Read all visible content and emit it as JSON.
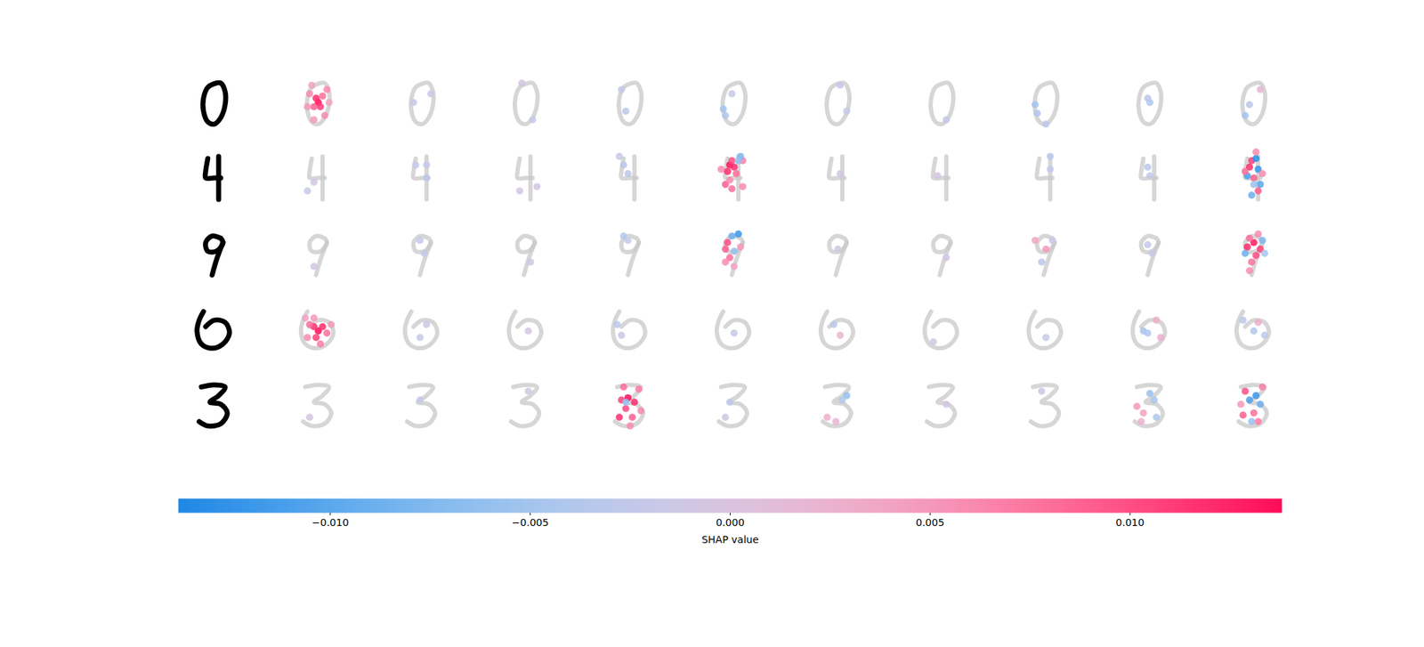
{
  "chart_data": {
    "type": "image_grid",
    "tick_labels": false,
    "xlim": [
      0,
      28
    ],
    "ylim": [
      28,
      0
    ],
    "images": [
      [
        [
          [
            15,
            5
          ],
          [
            11,
            7
          ],
          [
            9,
            12
          ],
          [
            9,
            18
          ],
          [
            11,
            23
          ],
          [
            14,
            24
          ],
          [
            17,
            21
          ],
          [
            19,
            15
          ],
          [
            19,
            9
          ],
          [
            17,
            5
          ],
          [
            15,
            5
          ]
        ]
      ],
      [
        [
          [
            11,
            5
          ],
          [
            10,
            11
          ],
          [
            10,
            14
          ],
          [
            14,
            14
          ],
          [
            17,
            14
          ]
        ],
        [
          [
            16,
            4
          ],
          [
            16,
            12
          ],
          [
            16,
            24
          ]
        ]
      ],
      [
        [
          [
            17,
            7
          ],
          [
            13,
            6
          ],
          [
            10,
            9
          ],
          [
            11,
            13
          ],
          [
            15,
            13
          ],
          [
            18,
            9
          ],
          [
            17,
            7
          ]
        ],
        [
          [
            18,
            9
          ],
          [
            15,
            17
          ],
          [
            13,
            24
          ]
        ]
      ],
      [
        [
          [
            9,
            6
          ],
          [
            7,
            10
          ],
          [
            6,
            15
          ],
          [
            8,
            21
          ],
          [
            13,
            23
          ],
          [
            18,
            21
          ],
          [
            21,
            16
          ],
          [
            19,
            11
          ],
          [
            14,
            10
          ],
          [
            10,
            13
          ]
        ]
      ],
      [
        [
          [
            8,
            6
          ],
          [
            14,
            5
          ],
          [
            19,
            6
          ],
          [
            16,
            10
          ],
          [
            12,
            13
          ],
          [
            17,
            14
          ],
          [
            20,
            18
          ],
          [
            17,
            23
          ],
          [
            11,
            24
          ],
          [
            7,
            22
          ]
        ]
      ]
    ],
    "explanations": [
      [
        [
          [
            14,
            14,
            0.0138
          ],
          [
            13,
            12,
            0.012
          ],
          [
            15,
            16,
            0.011
          ],
          [
            12,
            16,
            0.009
          ],
          [
            16,
            11,
            0.008
          ],
          [
            10,
            10,
            0.006
          ],
          [
            18,
            8,
            0.006
          ],
          [
            9,
            16,
            0.005
          ],
          [
            12,
            22,
            0.005
          ],
          [
            17,
            20,
            0.006
          ],
          [
            11,
            6,
            0.004
          ],
          [
            19,
            14,
            0.004
          ]
        ],
        [
          [
            10,
            14,
            -0.002
          ],
          [
            18,
            10,
            -0.002
          ]
        ],
        [
          [
            12,
            5,
            -0.001
          ],
          [
            17,
            22,
            -0.002
          ]
        ],
        [
          [
            10,
            8,
            -0.002
          ],
          [
            12,
            18,
            -0.003
          ]
        ],
        [
          [
            9,
            17,
            -0.005
          ],
          [
            10,
            20,
            -0.004
          ],
          [
            13,
            10,
            -0.002
          ]
        ],
        [
          [
            15,
            6,
            -0.002
          ],
          [
            18,
            18,
            -0.002
          ]
        ],
        [
          [
            16,
            22,
            -0.002
          ]
        ],
        [
          [
            9,
            15,
            -0.005
          ],
          [
            10,
            19,
            -0.004
          ],
          [
            14,
            24,
            -0.003
          ]
        ],
        [
          [
            14,
            14,
            -0.004
          ],
          [
            13,
            12,
            -0.003
          ]
        ],
        [
          [
            10,
            20,
            -0.005
          ],
          [
            12,
            15,
            -0.003
          ],
          [
            17,
            8,
            0.002
          ]
        ]
      ],
      [
        [
          [
            9,
            20,
            -0.002
          ],
          [
            12,
            16,
            -0.001
          ]
        ],
        [
          [
            16,
            14,
            -0.003
          ],
          [
            16,
            8,
            -0.002
          ],
          [
            11,
            8,
            -0.002
          ]
        ],
        [
          [
            11,
            20,
            -0.001
          ],
          [
            19,
            18,
            -0.001
          ]
        ],
        [
          [
            11,
            8,
            -0.003
          ],
          [
            13,
            12,
            -0.003
          ],
          [
            9,
            4,
            -0.002
          ]
        ],
        [
          [
            12,
            8,
            0.0138
          ],
          [
            14,
            9,
            0.012
          ],
          [
            13,
            6,
            0.01
          ],
          [
            11,
            11,
            0.012
          ],
          [
            15,
            12,
            0.008
          ],
          [
            8,
            10,
            0.006
          ],
          [
            18,
            6,
            0.007
          ],
          [
            10,
            17,
            0.009
          ],
          [
            13,
            19,
            0.008
          ],
          [
            18,
            18,
            0.006
          ],
          [
            17,
            4,
            -0.008
          ],
          [
            16,
            6,
            -0.006
          ],
          [
            12,
            15,
            0.006
          ]
        ],
        [
          [
            15,
            12,
            -0.001
          ]
        ],
        [
          [
            12,
            13,
            -0.001
          ]
        ],
        [
          [
            16,
            4,
            -0.003
          ],
          [
            16,
            10,
            -0.002
          ]
        ],
        [
          [
            13,
            9,
            -0.003
          ],
          [
            14,
            13,
            -0.002
          ]
        ],
        [
          [
            13,
            6,
            0.011
          ],
          [
            12,
            9,
            0.012
          ],
          [
            15,
            5,
            -0.013
          ],
          [
            16,
            10,
            -0.012
          ],
          [
            11,
            13,
            -0.011
          ],
          [
            17,
            17,
            -0.01
          ],
          [
            14,
            14,
            0.009
          ],
          [
            10,
            11,
            0.008
          ],
          [
            16,
            20,
            0.009
          ],
          [
            13,
            22,
            -0.009
          ],
          [
            18,
            12,
            0.006
          ],
          [
            15,
            2,
            0.006
          ],
          [
            14,
            17,
            -0.006
          ]
        ]
      ],
      [
        [
          [
            12,
            20,
            -0.001
          ]
        ],
        [
          [
            15,
            14,
            -0.002
          ],
          [
            13,
            8,
            -0.002
          ]
        ],
        [
          [
            16,
            18,
            -0.001
          ]
        ],
        [
          [
            11,
            6,
            -0.004
          ],
          [
            13,
            8,
            -0.002
          ]
        ],
        [
          [
            16,
            5,
            -0.012
          ],
          [
            13,
            6,
            -0.009
          ],
          [
            11,
            9,
            0.01
          ],
          [
            10,
            12,
            0.009
          ],
          [
            14,
            13,
            -0.006
          ],
          [
            12,
            16,
            0.008
          ],
          [
            10,
            18,
            0.006
          ],
          [
            17,
            11,
            0.005
          ],
          [
            14,
            20,
            0.004
          ]
        ],
        [
          [
            14,
            12,
            -0.001
          ]
        ],
        [
          [
            16,
            16,
            -0.001
          ]
        ],
        [
          [
            9,
            8,
            0.004
          ],
          [
            14,
            12,
            0.005
          ],
          [
            12,
            18,
            -0.003
          ],
          [
            17,
            8,
            -0.002
          ]
        ],
        [
          [
            13,
            10,
            -0.002
          ],
          [
            15,
            14,
            -0.002
          ]
        ],
        [
          [
            14,
            9,
            0.013
          ],
          [
            11,
            11,
            0.012
          ],
          [
            17,
            12,
            0.011
          ],
          [
            12,
            7,
            0.008
          ],
          [
            15,
            15,
            0.01
          ],
          [
            13,
            18,
            0.008
          ],
          [
            10,
            14,
            -0.009
          ],
          [
            18,
            8,
            -0.008
          ],
          [
            16,
            5,
            0.006
          ],
          [
            12,
            22,
            0.006
          ],
          [
            19,
            14,
            -0.005
          ]
        ]
      ],
      [
        [
          [
            14,
            15,
            0.0138
          ],
          [
            12,
            13,
            0.012
          ],
          [
            16,
            13,
            0.012
          ],
          [
            13,
            18,
            0.011
          ],
          [
            10,
            12,
            0.008
          ],
          [
            18,
            16,
            0.008
          ],
          [
            9,
            18,
            0.006
          ],
          [
            15,
            21,
            0.007
          ],
          [
            20,
            12,
            0.005
          ],
          [
            8,
            9,
            0.004
          ],
          [
            12,
            9,
            0.005
          ]
        ],
        [
          [
            16,
            12,
            -0.002
          ],
          [
            13,
            18,
            -0.002
          ]
        ],
        [
          [
            15,
            15,
            -0.001
          ]
        ],
        [
          [
            8,
            12,
            -0.003
          ],
          [
            10,
            17,
            -0.002
          ]
        ],
        [
          [
            14,
            16,
            -0.002
          ]
        ],
        [
          [
            12,
            12,
            -0.003
          ],
          [
            15,
            17,
            0.002
          ]
        ],
        [
          [
            10,
            20,
            -0.001
          ]
        ],
        [
          [
            14,
            18,
            -0.002
          ]
        ],
        [
          [
            11,
            15,
            -0.005
          ],
          [
            13,
            16,
            -0.004
          ],
          [
            17,
            10,
            0.003
          ],
          [
            19,
            18,
            0.003
          ]
        ],
        [
          [
            14,
            15,
            -0.004
          ],
          [
            16,
            11,
            0.003
          ],
          [
            9,
            10,
            -0.003
          ],
          [
            19,
            17,
            -0.003
          ]
        ]
      ],
      [
        [
          [
            10,
            20,
            -0.001
          ]
        ],
        [
          [
            13,
            12,
            -0.002
          ]
        ],
        [
          [
            15,
            8,
            -0.001
          ]
        ],
        [
          [
            13,
            11,
            0.0138
          ],
          [
            16,
            13,
            0.012
          ],
          [
            10,
            12,
            0.011
          ],
          [
            12,
            16,
            0.01
          ],
          [
            9,
            20,
            0.012
          ],
          [
            15,
            20,
            0.009
          ],
          [
            18,
            7,
            0.007
          ],
          [
            11,
            6,
            0.008
          ],
          [
            19,
            17,
            0.006
          ],
          [
            14,
            24,
            0.006
          ],
          [
            12,
            13,
            -0.006
          ]
        ],
        [
          [
            12,
            13,
            -0.003
          ],
          [
            10,
            20,
            -0.001
          ]
        ],
        [
          [
            18,
            10,
            -0.006
          ],
          [
            16,
            12,
            -0.004
          ],
          [
            9,
            20,
            0.003
          ],
          [
            13,
            22,
            0.002
          ]
        ],
        [
          [
            16,
            14,
            -0.001
          ]
        ],
        [
          [
            12,
            8,
            -0.002
          ]
        ],
        [
          [
            14,
            9,
            -0.006
          ],
          [
            16,
            12,
            -0.005
          ],
          [
            8,
            15,
            0.005
          ],
          [
            11,
            18,
            0.004
          ],
          [
            17,
            20,
            -0.004
          ],
          [
            10,
            22,
            0.003
          ]
        ],
        [
          [
            15,
            10,
            -0.012
          ],
          [
            12,
            12,
            -0.011
          ],
          [
            17,
            14,
            -0.009
          ],
          [
            10,
            8,
            0.01
          ],
          [
            9,
            19,
            0.009
          ],
          [
            14,
            18,
            0.008
          ],
          [
            18,
            6,
            0.007
          ],
          [
            13,
            22,
            -0.006
          ],
          [
            16,
            22,
            0.007
          ],
          [
            8,
            14,
            0.005
          ]
        ]
      ]
    ],
    "colorbar": {
      "label": "SHAP value",
      "range": [
        -0.0138,
        0.0138
      ],
      "colors": [
        "#1e88e5",
        "#ffffff",
        "#ff0d57"
      ],
      "ticks": [
        {
          "value": -0.01,
          "label": "−0.010"
        },
        {
          "value": -0.005,
          "label": "−0.005"
        },
        {
          "value": 0,
          "label": "0.000"
        },
        {
          "value": 0.005,
          "label": "0.005"
        },
        {
          "value": 0.01,
          "label": "0.010"
        }
      ]
    }
  }
}
